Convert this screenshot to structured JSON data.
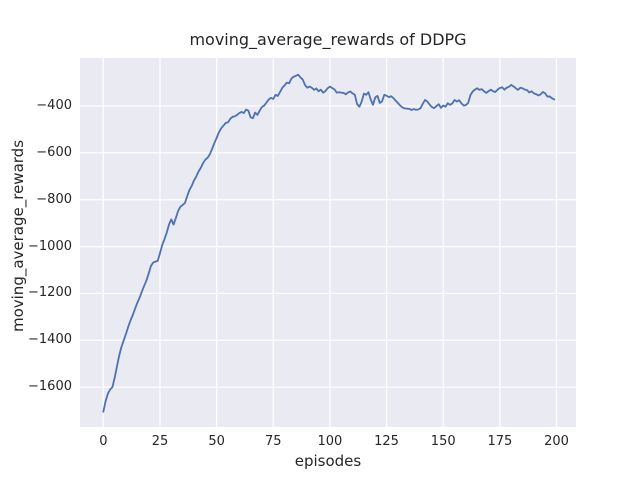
{
  "chart_data": {
    "type": "line",
    "title": "moving_average_rewards of DDPG",
    "xlabel": "episodes",
    "ylabel": "moving_average_rewards",
    "legend_shown": false,
    "grid": true,
    "plot_bg_color": "#eaeaf2",
    "grid_color": "#ffffff",
    "text_color": "#262626",
    "xlim": [
      -10.3,
      208.6
    ],
    "ylim": [
      -1770,
      -195
    ],
    "xticks": [
      0,
      25,
      50,
      75,
      100,
      125,
      150,
      175,
      200
    ],
    "yticks": [
      -400,
      -600,
      -800,
      -1000,
      -1200,
      -1400,
      -1600
    ],
    "x_range": [
      0,
      199
    ],
    "x_description": "episode index, one point per episode",
    "series": [
      {
        "name": "moving_average_rewards",
        "color": "#4c72b0",
        "line_width": 1.8,
        "values": [
          -1705,
          -1660,
          -1628,
          -1610,
          -1600,
          -1560,
          -1512,
          -1465,
          -1428,
          -1400,
          -1372,
          -1342,
          -1315,
          -1292,
          -1265,
          -1240,
          -1218,
          -1192,
          -1168,
          -1145,
          -1115,
          -1083,
          -1068,
          -1064,
          -1061,
          -1028,
          -993,
          -968,
          -940,
          -905,
          -884,
          -906,
          -878,
          -848,
          -830,
          -822,
          -814,
          -785,
          -758,
          -741,
          -718,
          -701,
          -680,
          -664,
          -644,
          -629,
          -621,
          -606,
          -583,
          -558,
          -536,
          -512,
          -495,
          -484,
          -472,
          -470,
          -455,
          -446,
          -444,
          -438,
          -430,
          -425,
          -430,
          -415,
          -420,
          -448,
          -452,
          -428,
          -438,
          -420,
          -404,
          -398,
          -385,
          -372,
          -365,
          -370,
          -352,
          -357,
          -340,
          -322,
          -312,
          -300,
          -303,
          -283,
          -275,
          -271,
          -266,
          -278,
          -287,
          -310,
          -322,
          -317,
          -322,
          -331,
          -325,
          -337,
          -330,
          -343,
          -336,
          -324,
          -317,
          -323,
          -329,
          -343,
          -341,
          -343,
          -344,
          -350,
          -342,
          -338,
          -346,
          -352,
          -392,
          -403,
          -381,
          -347,
          -352,
          -341,
          -372,
          -395,
          -363,
          -357,
          -387,
          -380,
          -352,
          -356,
          -362,
          -358,
          -366,
          -377,
          -387,
          -398,
          -406,
          -410,
          -411,
          -412,
          -417,
          -413,
          -416,
          -415,
          -409,
          -390,
          -374,
          -381,
          -394,
          -404,
          -409,
          -400,
          -392,
          -408,
          -398,
          -403,
          -388,
          -395,
          -389,
          -374,
          -381,
          -375,
          -388,
          -398,
          -396,
          -387,
          -354,
          -338,
          -330,
          -324,
          -331,
          -328,
          -337,
          -344,
          -337,
          -330,
          -337,
          -340,
          -330,
          -323,
          -320,
          -330,
          -322,
          -318,
          -310,
          -316,
          -324,
          -331,
          -322,
          -324,
          -330,
          -332,
          -342,
          -337,
          -346,
          -349,
          -355,
          -350,
          -340,
          -346,
          -360,
          -359,
          -367,
          -372
        ]
      }
    ]
  }
}
